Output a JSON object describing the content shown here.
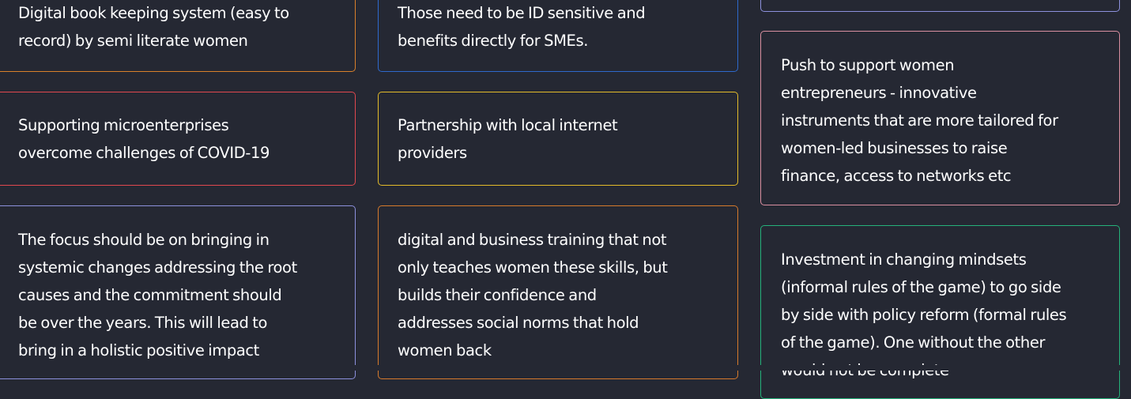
{
  "cards": {
    "c1": {
      "color": "#d9802a",
      "lines": [
        "Digital book keeping system (easy to",
        "record) by semi literate women"
      ]
    },
    "c2": {
      "color": "#2e69cc",
      "lines": [
        "Those need to be ID sensitive and",
        "benefits directly for SMEs."
      ]
    },
    "c3": {
      "color": "#e1484f",
      "lines": [
        "Supporting microenterprises",
        "overcome challenges of COVID-19"
      ]
    },
    "c4": {
      "color": "#e3bb2a",
      "lines": [
        "Partnership with local internet",
        "providers"
      ]
    },
    "c5": {
      "color": "#d98fa0",
      "lines": [
        "Push to support women",
        "entrepreneurs - innovative",
        "instruments that are more tailored for",
        "women-led businesses to raise",
        "finance, access to networks etc"
      ]
    },
    "c6": {
      "color": "#8d91dd",
      "lines": [
        "The focus should be on bringing in",
        "systemic changes addressing the root",
        "causes and the commitment should",
        "be over the years. This will lead to",
        "bring in a holistic positive impact"
      ]
    },
    "c7": {
      "color": "#d67a2c",
      "lines": [
        "digital and business training that not",
        "only teaches women these skills, but",
        "builds their confidence and",
        "addresses social norms that hold",
        "women back"
      ]
    },
    "c8": {
      "color": "#25b27a",
      "lines": [
        "Investment in changing mindsets",
        "(informal rules of the game) to go side",
        "by side with policy reform (formal rules",
        "of the game). One without the other",
        "would not be complete"
      ]
    }
  },
  "top_partial_card_color": "#8d91dd"
}
